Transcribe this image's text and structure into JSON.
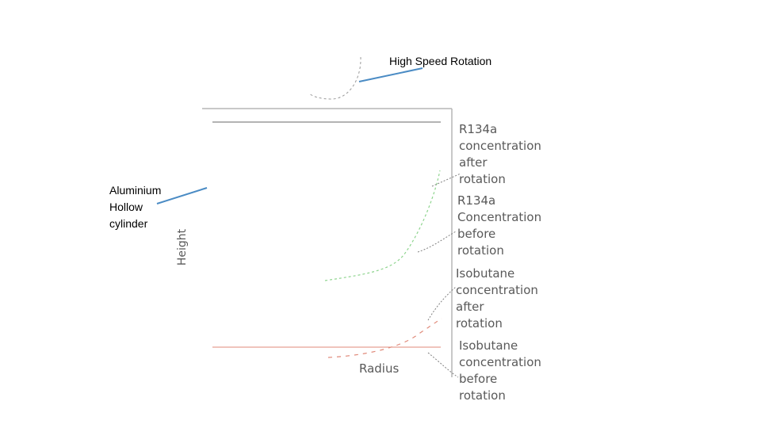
{
  "labels": {
    "rotation": "High Speed Rotation",
    "cylinder": "Aluminium\nHollow\ncylinder",
    "height": "Height",
    "radius": "Radius",
    "r134a_after": "R134a\nconcentration\nafter\nrotation",
    "r134a_before": "R134a\nConcentration\nbefore\nrotation",
    "isobutane_after": "Isobutane\nconcentration\nafter\nrotation",
    "isobutane_before": "Isobutane\nconcentration\nbefore\nrotation"
  },
  "colors": {
    "callout_arrow": "#4a8bc4",
    "r134a_curve": "#8dd48d",
    "isobutane_curve": "#e08a7a",
    "frame": "#b5b5b5",
    "leader": "#808080"
  }
}
